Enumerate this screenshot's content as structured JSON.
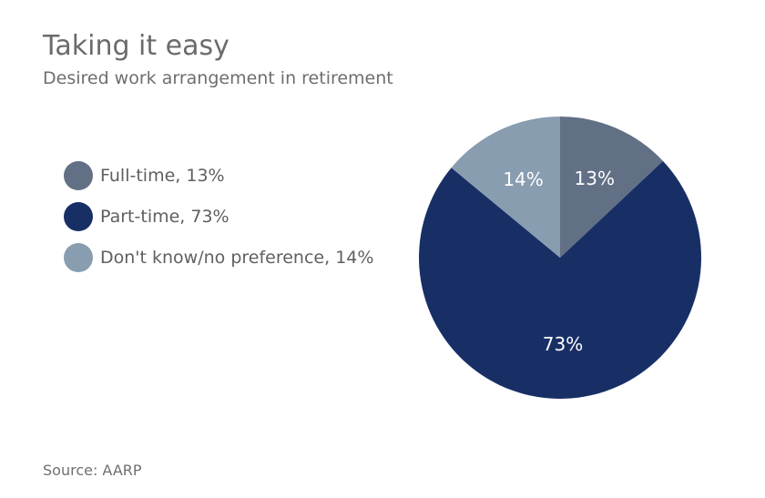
{
  "header": {
    "title": "Taking it easy",
    "subtitle": "Desired work arrangement in retirement"
  },
  "legend": {
    "items": [
      {
        "label": "Full-time, 13%",
        "color": "#627085"
      },
      {
        "label": "Part-time, 73%",
        "color": "#182f66"
      },
      {
        "label": "Don't know/no preference, 14%",
        "color": "#899db0"
      }
    ]
  },
  "chart_data": {
    "type": "pie",
    "title": "Taking it easy",
    "subtitle": "Desired work arrangement in retirement",
    "legend_position": "left",
    "slices": [
      {
        "label": "Full-time",
        "value": 13,
        "data_label": "13%",
        "color": "#627085"
      },
      {
        "label": "Part-time",
        "value": 73,
        "data_label": "73%",
        "color": "#182f66"
      },
      {
        "label": "Don't know/no preference",
        "value": 14,
        "data_label": "14%",
        "color": "#899db0"
      }
    ]
  },
  "footer": {
    "source": "Source: AARP"
  }
}
